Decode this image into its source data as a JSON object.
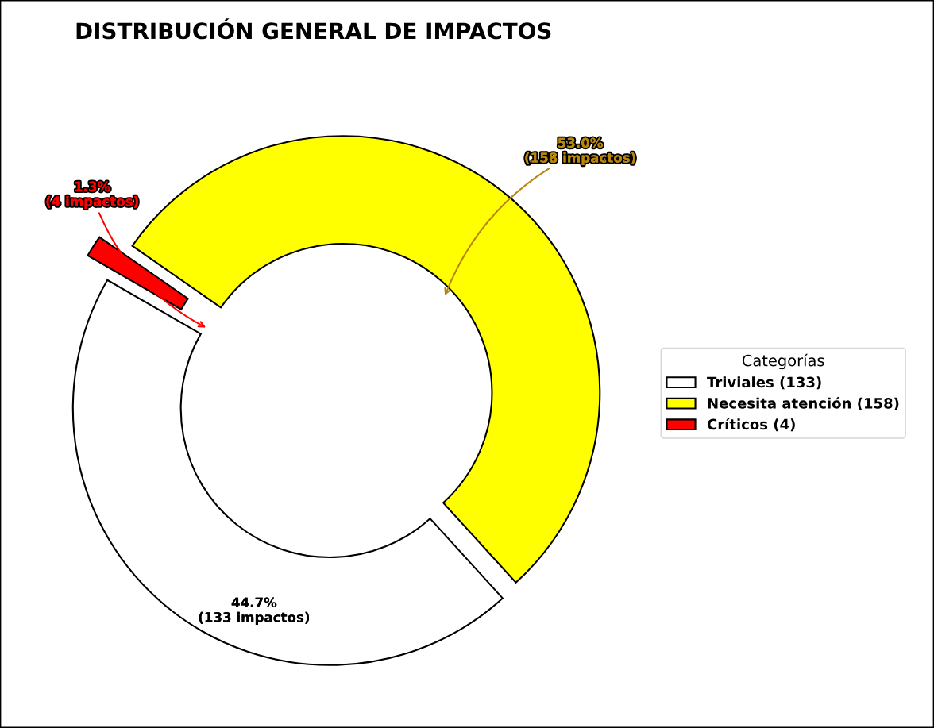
{
  "chart_data": {
    "type": "donut",
    "title": "DISTRIBUCIÓN GENERAL DE IMPACTOS",
    "categories": [
      "Triviales (133)",
      "Necesita atención (158)",
      "Críticos (4)"
    ],
    "values": [
      133,
      158,
      4
    ],
    "colors": [
      "#ffffff",
      "#ffff00",
      "#ff0000"
    ],
    "value_labels": [
      "44.7%\n(133 impactos)",
      "53.0%\n(158 impactos)",
      "1.3%\n(4 impactos)"
    ],
    "legend": "right",
    "legend_title": "Categorías"
  }
}
